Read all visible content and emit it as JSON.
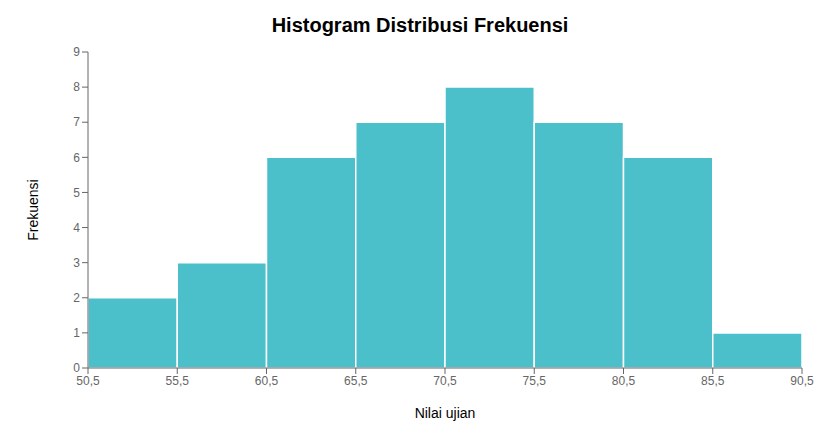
{
  "chart_data": {
    "type": "histogram",
    "title": "Histogram Distribusi Frekuensi",
    "xlabel": "Nilai ujian",
    "ylabel": "Frekuensi",
    "bins": [
      50.5,
      55.5,
      60.5,
      65.5,
      70.5,
      75.5,
      80.5,
      85.5,
      90.5
    ],
    "values": [
      2,
      3,
      6,
      7,
      8,
      7,
      6,
      1
    ],
    "color": "#4BBFCA",
    "xlim": [
      50.5,
      90.5
    ],
    "ylim": [
      0,
      9
    ],
    "xticks": [
      {
        "value": 50.5,
        "label": "50,5"
      },
      {
        "value": 55.5,
        "label": "55,5"
      },
      {
        "value": 60.5,
        "label": "60,5"
      },
      {
        "value": 65.5,
        "label": "65,5"
      },
      {
        "value": 70.5,
        "label": "70,5"
      },
      {
        "value": 75.5,
        "label": "75,5"
      },
      {
        "value": 80.5,
        "label": "80,5"
      },
      {
        "value": 85.5,
        "label": "85,5"
      },
      {
        "value": 90.5,
        "label": "90,5"
      }
    ],
    "yticks": [
      0,
      1,
      2,
      3,
      4,
      5,
      6,
      7,
      8,
      9
    ],
    "grid": false
  }
}
